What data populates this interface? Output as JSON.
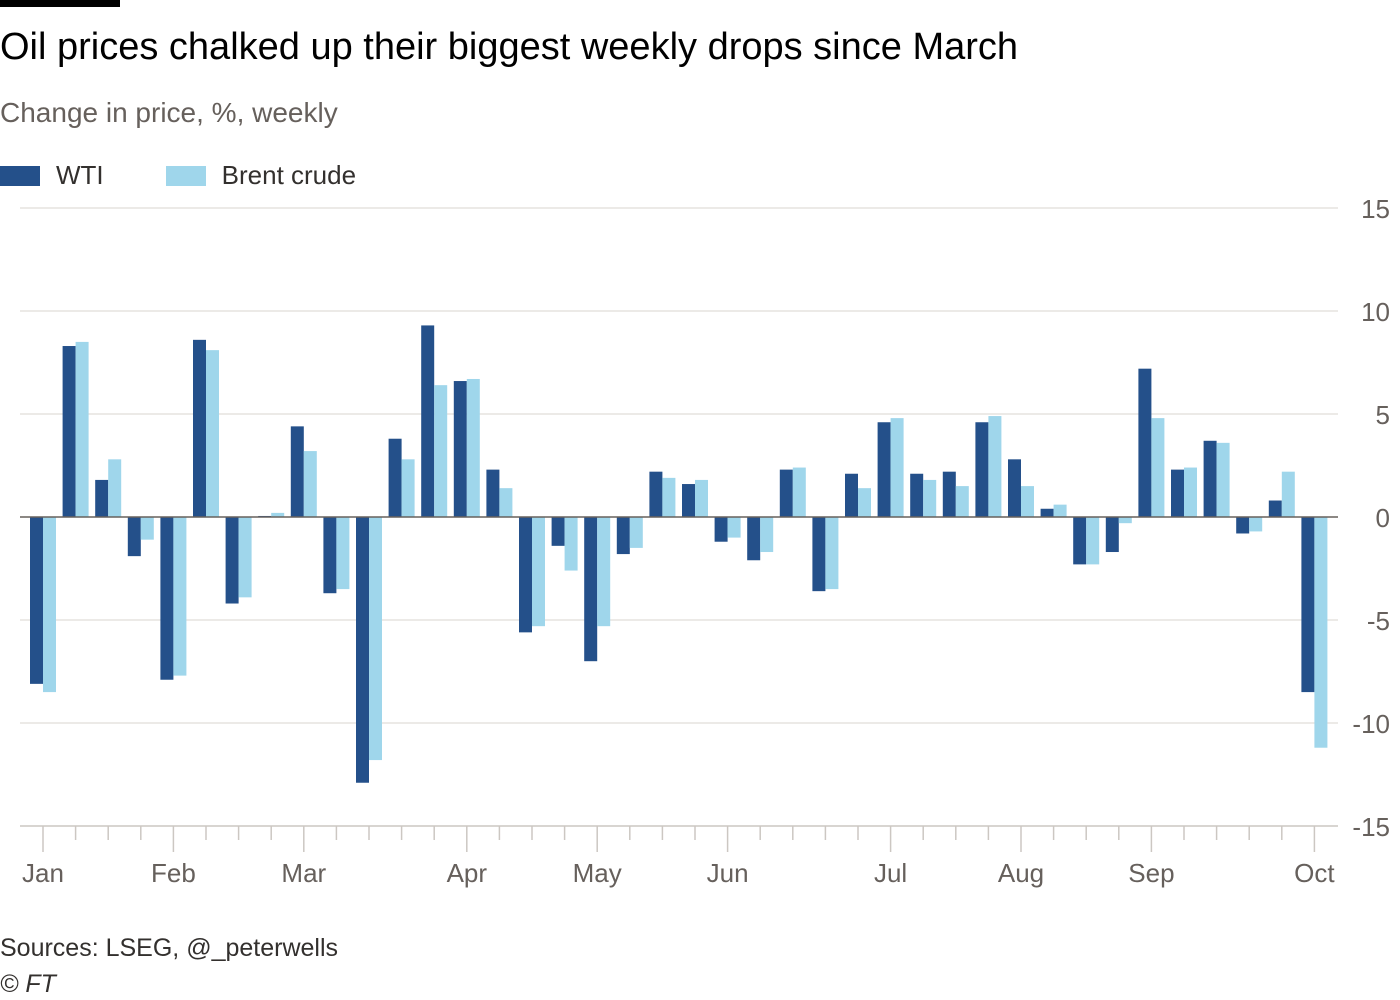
{
  "title": "Oil prices chalked up their biggest weekly drops since March",
  "subtitle": "Change in price, %, weekly",
  "source": "Sources: LSEG, @_peterwells",
  "copyright": "© FT",
  "colors": {
    "WTI": "#24508a",
    "Brent crude": "#9fd6eb"
  },
  "chart_data": {
    "type": "bar",
    "title": "Oil prices chalked up their biggest weekly drops since March",
    "ylabel": "Change in price, %, weekly",
    "ylim": [
      -15,
      15
    ],
    "yticks": [
      15,
      10,
      5,
      0,
      -5,
      -10,
      -15
    ],
    "month_labels": [
      {
        "label": "Jan",
        "week": 0
      },
      {
        "label": "Feb",
        "week": 4
      },
      {
        "label": "Mar",
        "week": 8
      },
      {
        "label": "Apr",
        "week": 13
      },
      {
        "label": "May",
        "week": 17
      },
      {
        "label": "Jun",
        "week": 21
      },
      {
        "label": "Jul",
        "week": 26
      },
      {
        "label": "Aug",
        "week": 30
      },
      {
        "label": "Sep",
        "week": 34
      },
      {
        "label": "Oct",
        "week": 39
      }
    ],
    "legend": "top-left",
    "series": [
      {
        "name": "WTI",
        "values": [
          -8.1,
          8.3,
          1.8,
          -1.9,
          -7.9,
          8.6,
          -4.2,
          0.05,
          4.4,
          -3.7,
          -12.9,
          3.8,
          9.3,
          6.6,
          2.3,
          -5.6,
          -1.4,
          -7.0,
          -1.8,
          2.2,
          1.6,
          -1.2,
          -2.1,
          2.3,
          -3.6,
          2.1,
          4.6,
          2.1,
          2.2,
          4.6,
          2.8,
          0.4,
          -2.3,
          -1.7,
          7.2,
          2.3,
          3.7,
          -0.8,
          0.8,
          -8.5
        ]
      },
      {
        "name": "Brent crude",
        "values": [
          -8.5,
          8.5,
          2.8,
          -1.1,
          -7.7,
          8.1,
          -3.9,
          0.2,
          3.2,
          -3.5,
          -11.8,
          2.8,
          6.4,
          6.7,
          1.4,
          -5.3,
          -2.6,
          -5.3,
          -1.5,
          1.9,
          1.8,
          -1.0,
          -1.7,
          2.4,
          -3.5,
          1.4,
          4.8,
          1.8,
          1.5,
          4.9,
          1.5,
          0.6,
          -2.3,
          -0.3,
          4.8,
          2.4,
          3.6,
          -0.7,
          2.2,
          -11.2
        ]
      }
    ]
  }
}
